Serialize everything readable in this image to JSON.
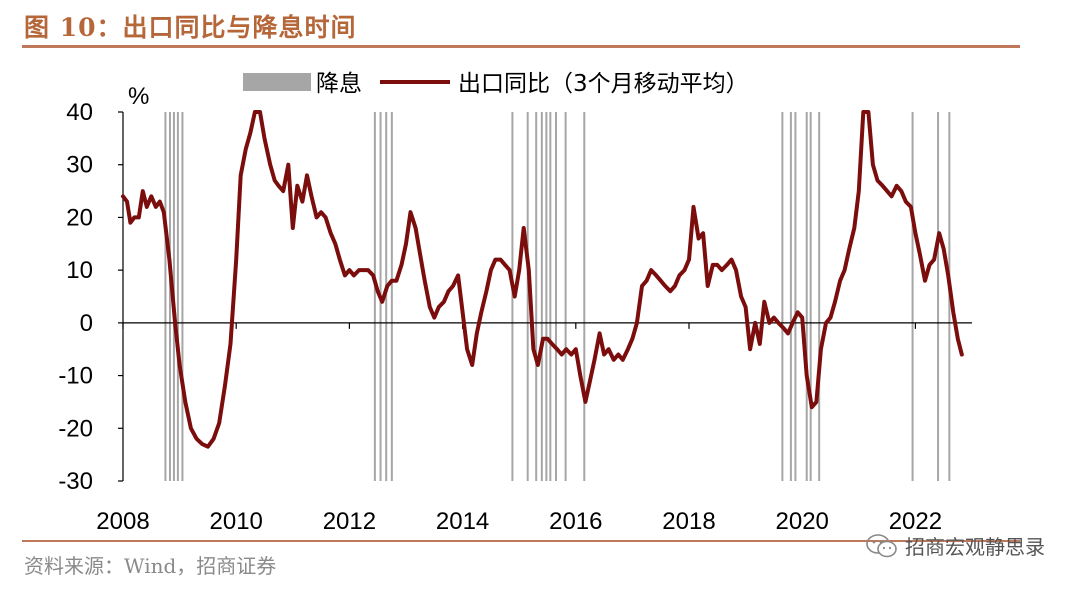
{
  "figure": {
    "title": "图 10：出口同比与降息时间",
    "source": "资料来源：Wind，招商证券",
    "watermark": "招商宏观静思录",
    "watermark_icon": "wechat-icon"
  },
  "chart_data": {
    "type": "line",
    "title": "",
    "xlabel": "",
    "ylabel": "%",
    "ylim": [
      -30,
      40
    ],
    "yticks": [
      40,
      30,
      20,
      10,
      0,
      -10,
      -20,
      -30
    ],
    "xticks": [
      "2008",
      "2010",
      "2012",
      "2014",
      "2016",
      "2018",
      "2020",
      "2022"
    ],
    "xlim": [
      2008.0,
      2023.0
    ],
    "grid": false,
    "legend_position": "top",
    "legend": [
      {
        "label": "降息",
        "kind": "bar",
        "color": "#a6a6a6"
      },
      {
        "label": "出口同比（3个月移动平均）",
        "kind": "line",
        "color": "#7b0d0d"
      }
    ],
    "rate_cut_dates": [
      2008.75,
      2008.83,
      2008.9,
      2008.97,
      2009.05,
      2012.45,
      2012.55,
      2012.65,
      2012.75,
      2014.88,
      2015.15,
      2015.3,
      2015.4,
      2015.48,
      2015.55,
      2015.65,
      2015.82,
      2016.15,
      2019.65,
      2019.8,
      2019.88,
      2020.08,
      2020.15,
      2020.3,
      2021.95,
      2022.4,
      2022.6
    ],
    "series": [
      {
        "name": "出口同比（3个月移动平均）",
        "color": "#7b0d0d",
        "points": [
          [
            2008.0,
            24
          ],
          [
            2008.07,
            23
          ],
          [
            2008.13,
            19
          ],
          [
            2008.2,
            20
          ],
          [
            2008.28,
            20
          ],
          [
            2008.35,
            25
          ],
          [
            2008.42,
            22
          ],
          [
            2008.5,
            24
          ],
          [
            2008.58,
            22
          ],
          [
            2008.65,
            23
          ],
          [
            2008.72,
            21
          ],
          [
            2008.82,
            12
          ],
          [
            2008.92,
            0
          ],
          [
            2009.0,
            -8
          ],
          [
            2009.1,
            -15
          ],
          [
            2009.2,
            -20
          ],
          [
            2009.3,
            -22
          ],
          [
            2009.4,
            -23
          ],
          [
            2009.5,
            -23.5
          ],
          [
            2009.6,
            -22
          ],
          [
            2009.7,
            -19
          ],
          [
            2009.8,
            -12
          ],
          [
            2009.9,
            -4
          ],
          [
            2010.0,
            12
          ],
          [
            2010.08,
            28
          ],
          [
            2010.17,
            33
          ],
          [
            2010.25,
            36
          ],
          [
            2010.33,
            40
          ],
          [
            2010.42,
            40
          ],
          [
            2010.5,
            35
          ],
          [
            2010.6,
            30
          ],
          [
            2010.68,
            27
          ],
          [
            2010.75,
            26
          ],
          [
            2010.83,
            25
          ],
          [
            2010.92,
            30
          ],
          [
            2011.0,
            18
          ],
          [
            2011.08,
            26
          ],
          [
            2011.17,
            23
          ],
          [
            2011.25,
            28
          ],
          [
            2011.33,
            24
          ],
          [
            2011.42,
            20
          ],
          [
            2011.5,
            21
          ],
          [
            2011.58,
            20
          ],
          [
            2011.67,
            17
          ],
          [
            2011.75,
            15
          ],
          [
            2011.83,
            12
          ],
          [
            2011.92,
            9
          ],
          [
            2012.0,
            10
          ],
          [
            2012.08,
            9
          ],
          [
            2012.17,
            10
          ],
          [
            2012.25,
            10
          ],
          [
            2012.33,
            10
          ],
          [
            2012.42,
            9
          ],
          [
            2012.5,
            6
          ],
          [
            2012.58,
            4
          ],
          [
            2012.67,
            7
          ],
          [
            2012.75,
            8
          ],
          [
            2012.83,
            8
          ],
          [
            2012.92,
            11
          ],
          [
            2013.0,
            15
          ],
          [
            2013.08,
            21
          ],
          [
            2013.17,
            18
          ],
          [
            2013.25,
            13
          ],
          [
            2013.33,
            8
          ],
          [
            2013.42,
            3
          ],
          [
            2013.5,
            1
          ],
          [
            2013.58,
            3
          ],
          [
            2013.67,
            4
          ],
          [
            2013.75,
            6
          ],
          [
            2013.83,
            7
          ],
          [
            2013.92,
            9
          ],
          [
            2014.0,
            2
          ],
          [
            2014.08,
            -5
          ],
          [
            2014.17,
            -8
          ],
          [
            2014.25,
            -2
          ],
          [
            2014.33,
            2
          ],
          [
            2014.42,
            6
          ],
          [
            2014.5,
            10
          ],
          [
            2014.58,
            12
          ],
          [
            2014.67,
            12
          ],
          [
            2014.75,
            11
          ],
          [
            2014.83,
            10
          ],
          [
            2014.92,
            5
          ],
          [
            2015.0,
            10
          ],
          [
            2015.08,
            18
          ],
          [
            2015.17,
            10
          ],
          [
            2015.25,
            -5
          ],
          [
            2015.33,
            -8
          ],
          [
            2015.42,
            -3
          ],
          [
            2015.5,
            -3
          ],
          [
            2015.58,
            -4
          ],
          [
            2015.67,
            -5
          ],
          [
            2015.75,
            -6
          ],
          [
            2015.83,
            -5
          ],
          [
            2015.92,
            -6
          ],
          [
            2016.0,
            -5
          ],
          [
            2016.08,
            -10
          ],
          [
            2016.17,
            -15
          ],
          [
            2016.25,
            -11
          ],
          [
            2016.33,
            -7
          ],
          [
            2016.42,
            -2
          ],
          [
            2016.5,
            -6
          ],
          [
            2016.58,
            -5
          ],
          [
            2016.67,
            -7
          ],
          [
            2016.75,
            -6
          ],
          [
            2016.83,
            -7
          ],
          [
            2016.92,
            -5
          ],
          [
            2017.0,
            -3
          ],
          [
            2017.08,
            0
          ],
          [
            2017.17,
            7
          ],
          [
            2017.25,
            8
          ],
          [
            2017.33,
            10
          ],
          [
            2017.42,
            9
          ],
          [
            2017.5,
            8
          ],
          [
            2017.58,
            7
          ],
          [
            2017.67,
            6
          ],
          [
            2017.75,
            7
          ],
          [
            2017.83,
            9
          ],
          [
            2017.92,
            10
          ],
          [
            2018.0,
            12
          ],
          [
            2018.08,
            22
          ],
          [
            2018.17,
            16
          ],
          [
            2018.25,
            17
          ],
          [
            2018.33,
            7
          ],
          [
            2018.42,
            11
          ],
          [
            2018.5,
            11
          ],
          [
            2018.58,
            10
          ],
          [
            2018.67,
            11
          ],
          [
            2018.75,
            12
          ],
          [
            2018.83,
            10
          ],
          [
            2018.92,
            5
          ],
          [
            2019.0,
            3
          ],
          [
            2019.08,
            -5
          ],
          [
            2019.17,
            0
          ],
          [
            2019.25,
            -4
          ],
          [
            2019.33,
            4
          ],
          [
            2019.42,
            0
          ],
          [
            2019.5,
            1
          ],
          [
            2019.58,
            0
          ],
          [
            2019.67,
            -1
          ],
          [
            2019.75,
            -2
          ],
          [
            2019.83,
            0
          ],
          [
            2019.92,
            2
          ],
          [
            2020.0,
            1
          ],
          [
            2020.08,
            -10
          ],
          [
            2020.17,
            -16
          ],
          [
            2020.25,
            -15
          ],
          [
            2020.33,
            -5
          ],
          [
            2020.42,
            0
          ],
          [
            2020.5,
            1
          ],
          [
            2020.58,
            4
          ],
          [
            2020.67,
            8
          ],
          [
            2020.75,
            10
          ],
          [
            2020.83,
            14
          ],
          [
            2020.92,
            18
          ],
          [
            2021.0,
            25
          ],
          [
            2021.08,
            40
          ],
          [
            2021.17,
            40
          ],
          [
            2021.25,
            30
          ],
          [
            2021.33,
            27
          ],
          [
            2021.42,
            26
          ],
          [
            2021.5,
            25
          ],
          [
            2021.58,
            24
          ],
          [
            2021.67,
            26
          ],
          [
            2021.75,
            25
          ],
          [
            2021.83,
            23
          ],
          [
            2021.92,
            22
          ],
          [
            2022.0,
            17
          ],
          [
            2022.08,
            13
          ],
          [
            2022.17,
            8
          ],
          [
            2022.25,
            11
          ],
          [
            2022.33,
            12
          ],
          [
            2022.42,
            17
          ],
          [
            2022.5,
            14
          ],
          [
            2022.58,
            9
          ],
          [
            2022.67,
            2
          ],
          [
            2022.75,
            -3
          ],
          [
            2022.82,
            -6
          ]
        ]
      }
    ]
  }
}
